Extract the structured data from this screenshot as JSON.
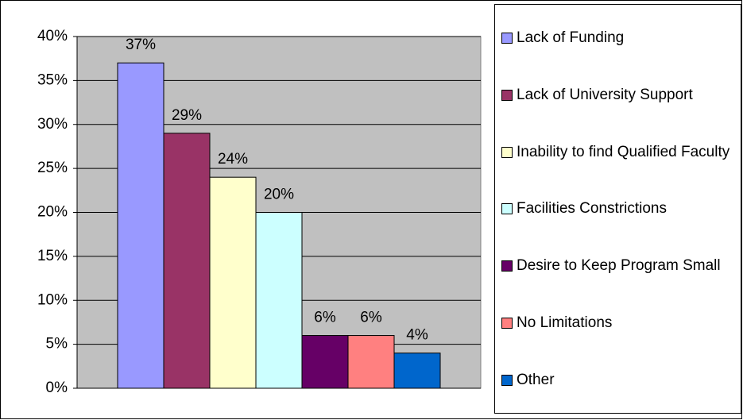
{
  "chart_data": {
    "type": "bar",
    "series": [
      {
        "name": "Lack of Funding",
        "color": "#9999ff",
        "values": [
          37
        ],
        "value_labels": [
          "37%"
        ]
      },
      {
        "name": "Lack of University Support",
        "color": "#993366",
        "values": [
          29
        ],
        "value_labels": [
          "29%"
        ]
      },
      {
        "name": "Inability to find Qualified Faculty",
        "color": "#ffffcc",
        "values": [
          24
        ],
        "value_labels": [
          "24%"
        ]
      },
      {
        "name": "Facilities Constrictions",
        "color": "#ccffff",
        "values": [
          20
        ],
        "value_labels": [
          "20%"
        ]
      },
      {
        "name": "Desire to Keep Program Small",
        "color": "#660066",
        "values": [
          6
        ],
        "value_labels": [
          "6%"
        ]
      },
      {
        "name": "No Limitations",
        "color": "#ff8080",
        "values": [
          6
        ],
        "value_labels": [
          "6%"
        ]
      },
      {
        "name": "Other",
        "color": "#0066cc",
        "values": [
          4
        ],
        "value_labels": [
          "4%"
        ]
      }
    ],
    "ylim": [
      0,
      40
    ],
    "yticks": [
      {
        "value": 0,
        "label": "0%"
      },
      {
        "value": 5,
        "label": "5%"
      },
      {
        "value": 10,
        "label": "10%"
      },
      {
        "value": 15,
        "label": "15%"
      },
      {
        "value": 20,
        "label": "20%"
      },
      {
        "value": 25,
        "label": "25%"
      },
      {
        "value": 30,
        "label": "30%"
      },
      {
        "value": 35,
        "label": "35%"
      },
      {
        "value": 40,
        "label": "40%"
      }
    ],
    "grid": true,
    "background": "#c0c0c0",
    "legend": "right"
  }
}
